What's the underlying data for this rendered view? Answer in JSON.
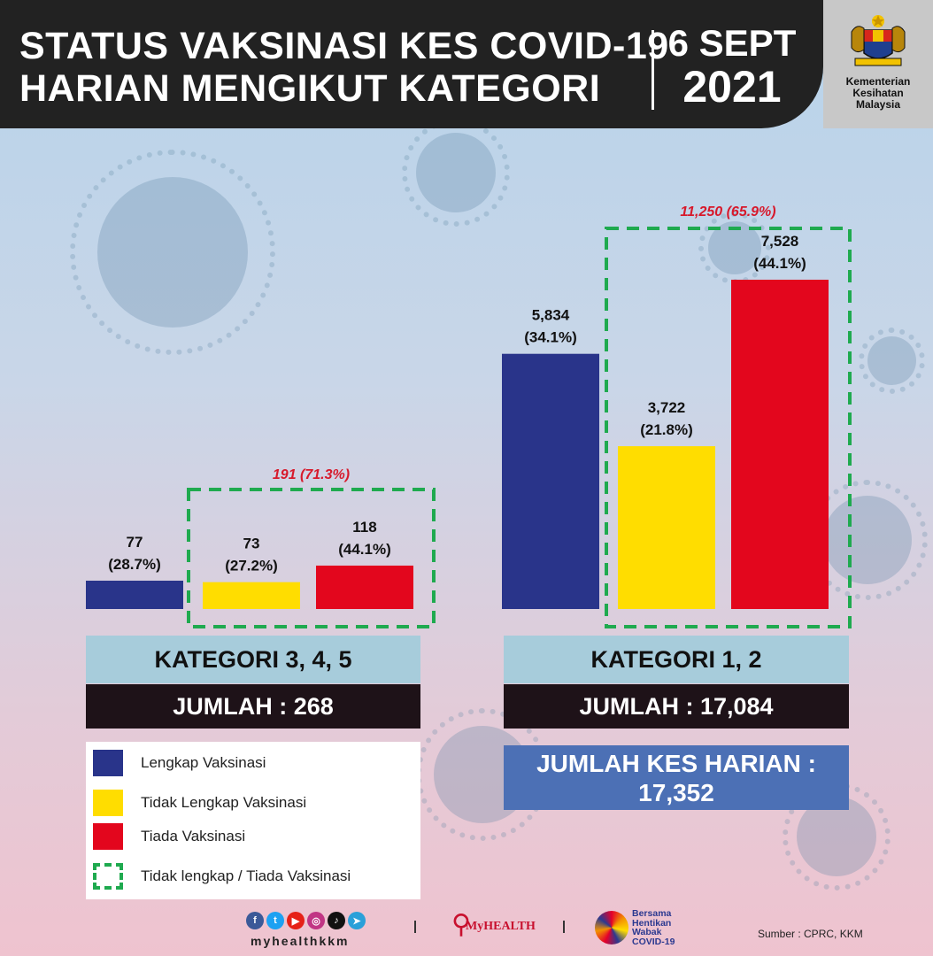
{
  "header": {
    "title_line1": "STATUS VAKSINASI KES COVID-19",
    "title_line2": "HARIAN MENGIKUT KATEGORI",
    "date_line1": "6 SEPT",
    "date_line2": "2021",
    "ministry_line1": "Kementerian",
    "ministry_line2": "Kesihatan",
    "ministry_line3": "Malaysia"
  },
  "colors": {
    "lengkap": "#29348a",
    "tidak_lengkap": "#ffdd00",
    "tiada": "#e3061d",
    "dashed_box": "#1faa4f",
    "highlight_text": "#d7192b"
  },
  "chart_data": [
    {
      "type": "bar",
      "title": "KATEGORI 3, 4, 5",
      "categories": [
        "Lengkap Vaksinasi",
        "Tidak Lengkap Vaksinasi",
        "Tiada Vaksinasi"
      ],
      "values": [
        77,
        73,
        118
      ],
      "value_labels": [
        "77",
        "73",
        "118"
      ],
      "pct_labels": [
        "(28.7%)",
        "(27.2%)",
        "(44.1%)"
      ],
      "group_label": "191 (71.3%)",
      "total_label": "JUMLAH : 268"
    },
    {
      "type": "bar",
      "title": "KATEGORI 1, 2",
      "categories": [
        "Lengkap Vaksinasi",
        "Tidak Lengkap Vaksinasi",
        "Tiada Vaksinasi"
      ],
      "values": [
        5834,
        3722,
        7528
      ],
      "value_labels": [
        "5,834",
        "3,722",
        "7,528"
      ],
      "pct_labels": [
        "(34.1%)",
        "(21.8%)",
        "(44.1%)"
      ],
      "group_label": "11,250 (65.9%)",
      "total_label": "JUMLAH : 17,084"
    }
  ],
  "grand_total": {
    "line1": "JUMLAH KES HARIAN :",
    "line2": "17,352"
  },
  "legend": [
    {
      "label": "Lengkap Vaksinasi",
      "kind": "solid",
      "color": "#29348a"
    },
    {
      "label": "Tidak Lengkap Vaksinasi",
      "kind": "solid",
      "color": "#ffdd00"
    },
    {
      "label": "Tiada Vaksinasi",
      "kind": "solid",
      "color": "#e3061d"
    },
    {
      "label": "Tidak lengkap / Tiada Vaksinasi",
      "kind": "dashed",
      "color": "#1faa4f"
    }
  ],
  "footer": {
    "handle": "myhealthkkm",
    "myhealth_logo": "MyHEALTH",
    "bersama_line1": "Bersama",
    "bersama_line2": "Hentikan",
    "bersama_line3": "Wabak",
    "bersama_line4": "COVID-19",
    "source": "Sumber : CPRC, KKM",
    "social_icons": [
      "facebook-icon",
      "twitter-icon",
      "youtube-icon",
      "instagram-icon",
      "tiktok-icon",
      "telegram-icon"
    ]
  }
}
